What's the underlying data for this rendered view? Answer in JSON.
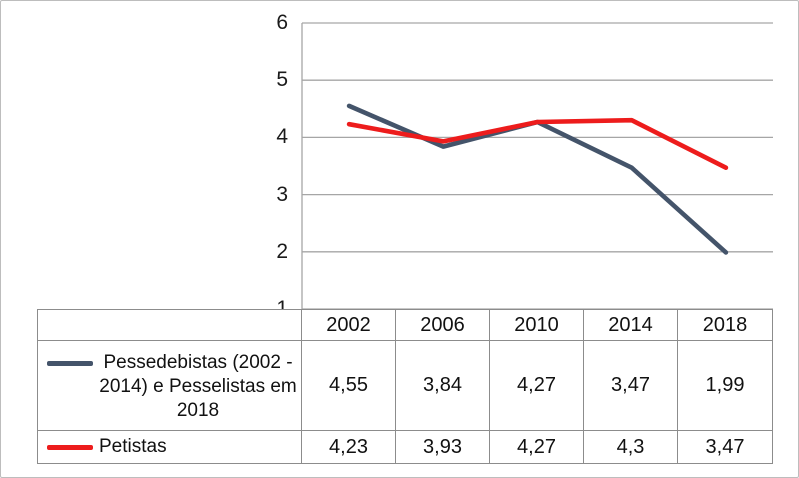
{
  "chart_data": {
    "type": "line",
    "title": "",
    "xlabel": "",
    "ylabel": "",
    "categories": [
      "2002",
      "2006",
      "2010",
      "2014",
      "2018"
    ],
    "series": [
      {
        "name": "Pessedebistas (2002 - 2014) e Pesselistas em 2018",
        "color": "#44546A",
        "values": [
          4.55,
          3.84,
          4.27,
          3.47,
          1.99
        ]
      },
      {
        "name": "Petistas",
        "color": "#ED1C1C",
        "values": [
          4.23,
          3.93,
          4.27,
          4.3,
          3.47
        ]
      }
    ],
    "ylim": [
      1,
      6
    ],
    "yticks": [
      6,
      5,
      4,
      3,
      2,
      1
    ],
    "grid": true,
    "legend_position": "data-table-left",
    "decimal_separator": ","
  },
  "colors": {
    "gridline": "#a6a6a6",
    "axis_line": "#a6a6a6",
    "table_border": "#8c8c8c",
    "outer_border": "#bdbdbd",
    "text": "#1a1a1a"
  }
}
